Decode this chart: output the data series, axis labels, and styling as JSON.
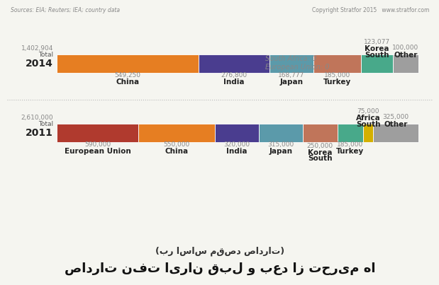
{
  "title": "صادرات نفت ایران قبل و بعد از تحریم ها",
  "subtitle": "(بر اساس مقصد صادرات)",
  "background_color": "#f5f5f0",
  "year1": {
    "year": "2011",
    "total": "2,610,000",
    "segments": [
      {
        "label": "European Union",
        "value": 590000,
        "color": "#b03a2e",
        "above": true
      },
      {
        "label": "China",
        "value": 550000,
        "color": "#e67e22",
        "above": true
      },
      {
        "label": "India",
        "value": 320000,
        "color": "#4a3d8f",
        "above": true
      },
      {
        "label": "Japan",
        "value": 315000,
        "color": "#5b9aaa",
        "above": true
      },
      {
        "label": "South Korea",
        "value": 250000,
        "color": "#c0755a",
        "above": true
      },
      {
        "label": "Turkey",
        "value": 185000,
        "color": "#48a98a",
        "above": true
      },
      {
        "label": "South Africa",
        "value": 75000,
        "color": "#d4b000",
        "above": false
      },
      {
        "label": "Other",
        "value": 325000,
        "color": "#9e9e9e",
        "above": false
      }
    ]
  },
  "year2": {
    "year": "2014",
    "total": "1,402,904",
    "segments": [
      {
        "label": "China",
        "value": 549250,
        "color": "#e67e22",
        "above": true
      },
      {
        "label": "India",
        "value": 276800,
        "color": "#4a3d8f",
        "above": true
      },
      {
        "label": "Japan",
        "value": 168777,
        "color": "#5b9aaa",
        "above": true
      },
      {
        "label": "Turkey",
        "value": 185000,
        "color": "#c0755a",
        "above": true
      },
      {
        "label": "South Korea",
        "value": 123077,
        "color": "#48a98a",
        "above": false
      },
      {
        "label": "Other",
        "value": 100000,
        "color": "#9e9e9e",
        "above": false
      }
    ],
    "note_line1": "European Union: 0",
    "note_line2": "South Africa: 0"
  },
  "sources": "Sources: EIA; Reuters; IEA; country data",
  "copyright": "Copyright Stratfor 2015   www.stratfor.com",
  "label_color": "#222222",
  "value_color": "#888888",
  "year_color": "#222222",
  "total_label_color": "#555555",
  "sep_color": "#bbbbbb"
}
